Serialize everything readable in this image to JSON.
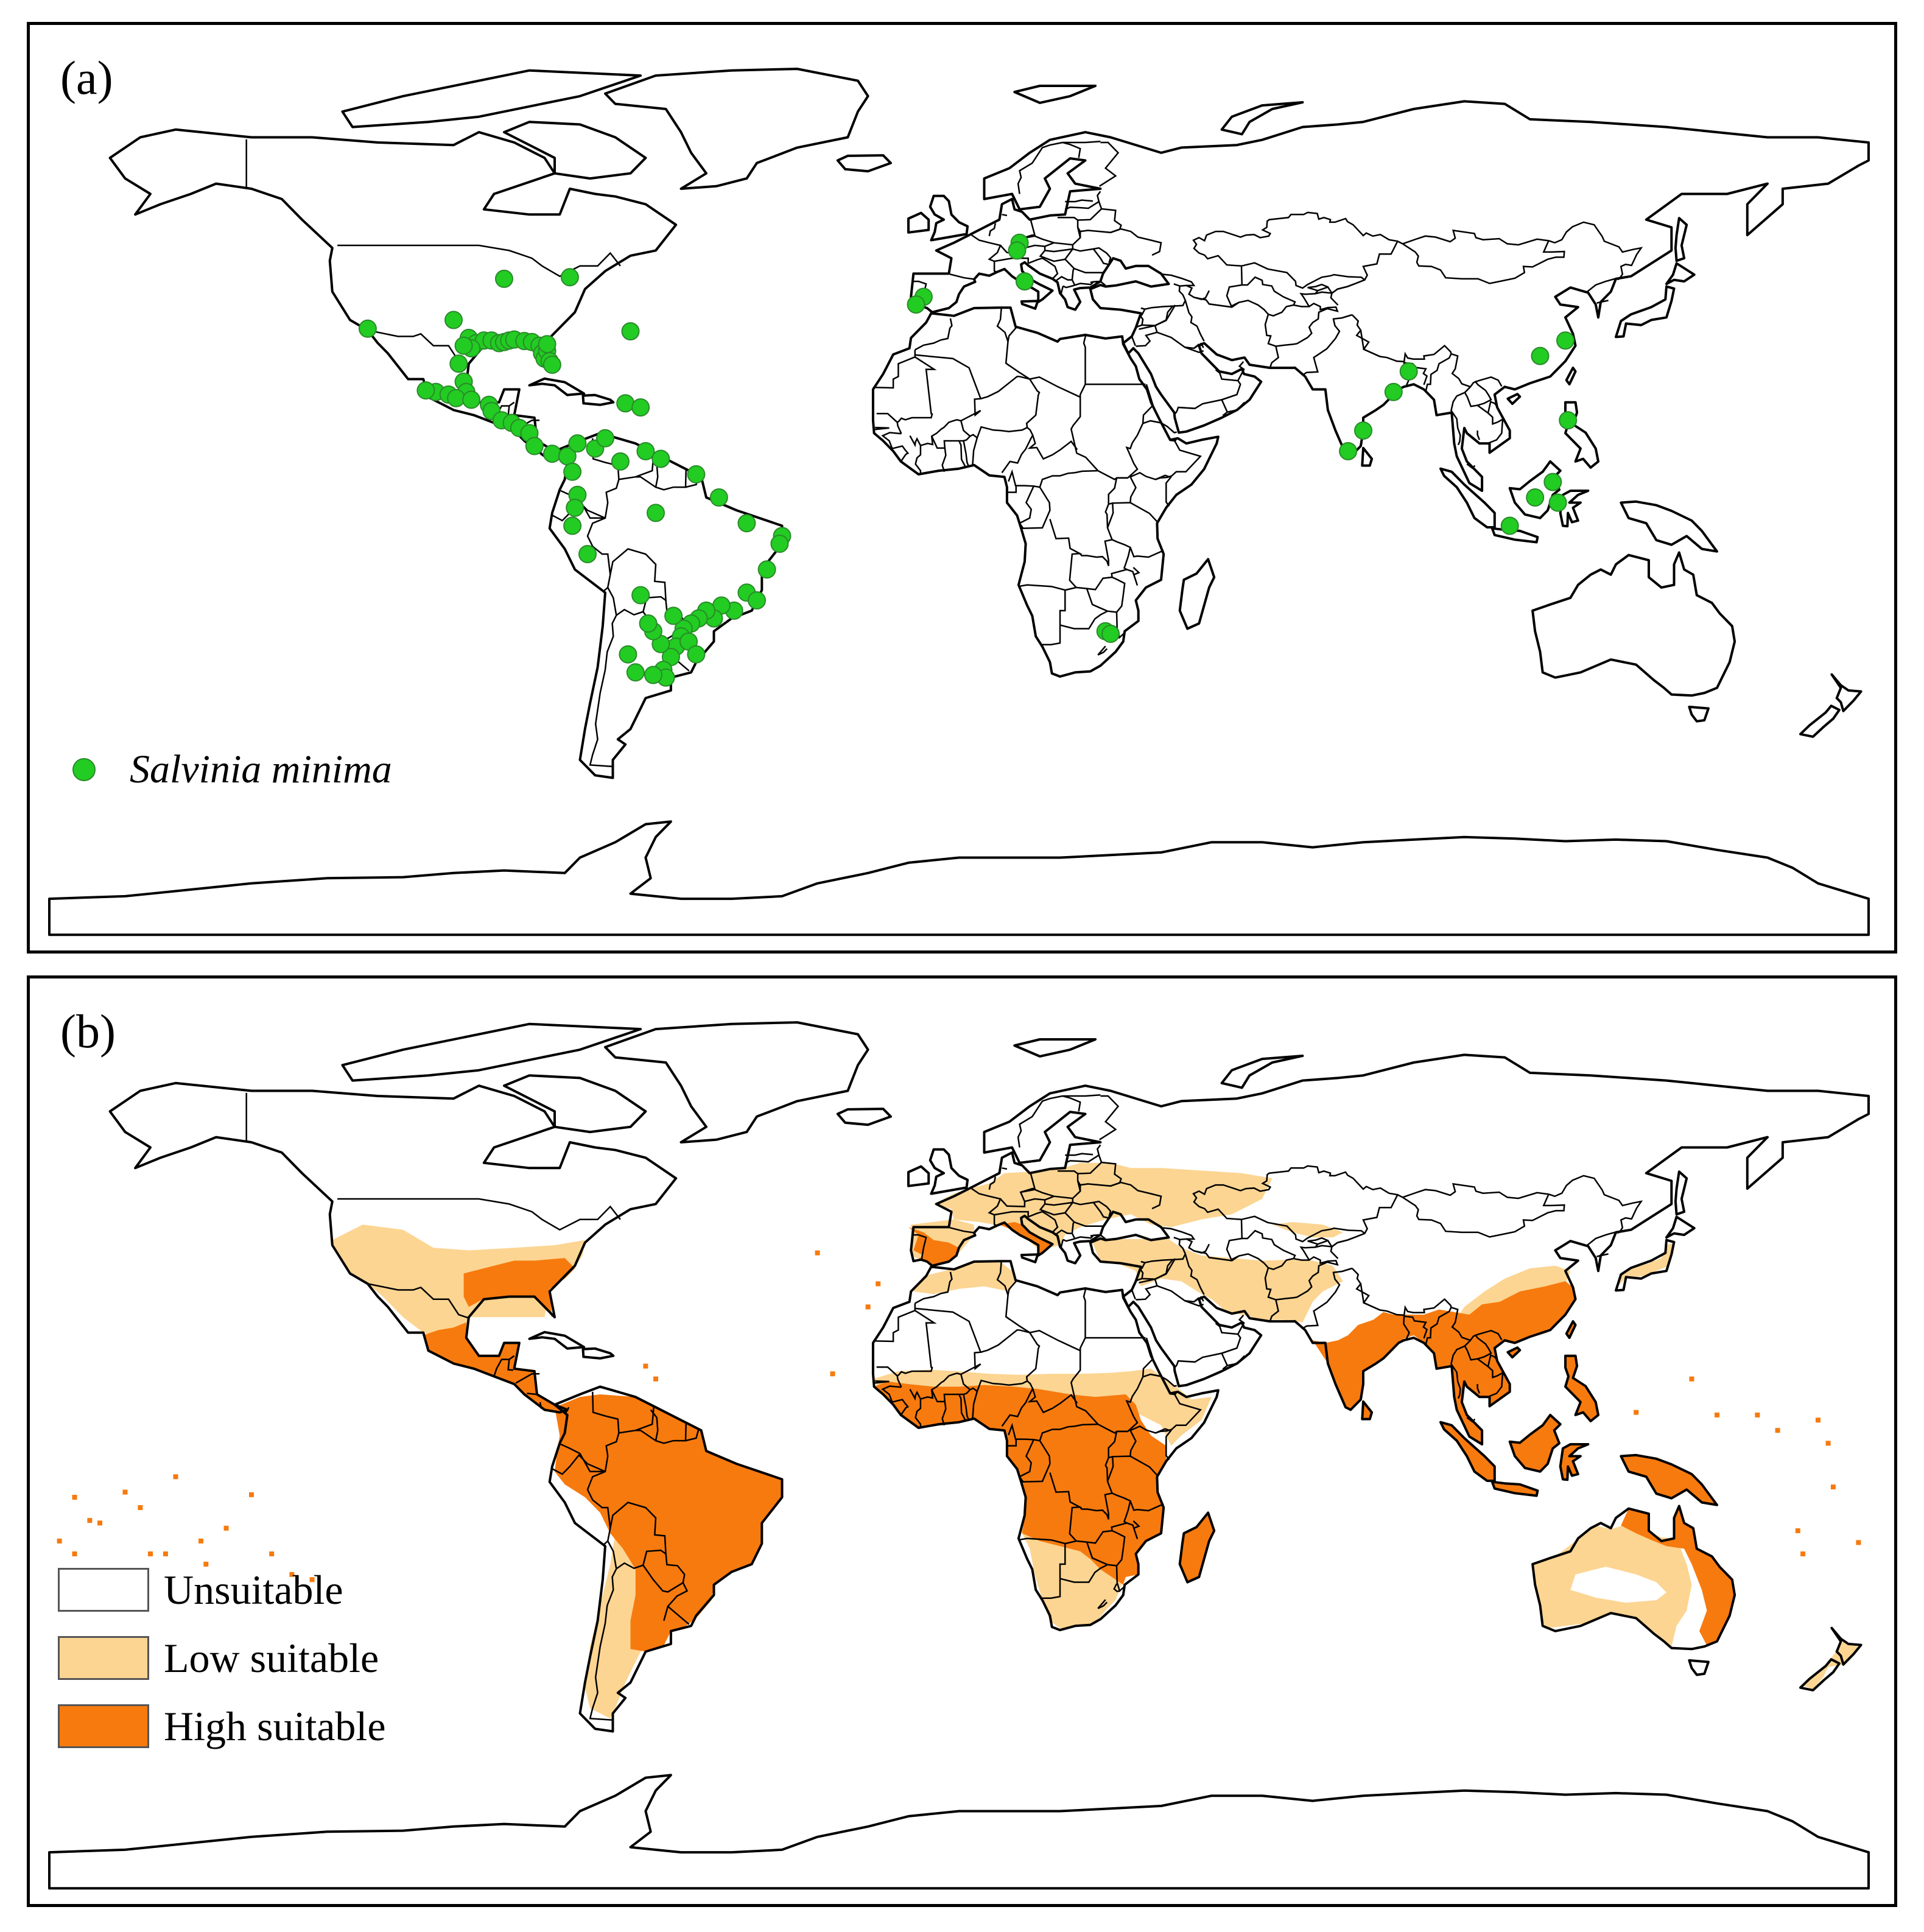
{
  "panel_a": {
    "label": "(a)",
    "legend": {
      "species": "Salvinia minima",
      "marker_color": "#22cc22"
    },
    "occurrences": [
      [
        -117.0,
        32.8
      ],
      [
        -90.0,
        42.5
      ],
      [
        -77.0,
        42.8
      ],
      [
        -65.0,
        32.3
      ],
      [
        -100.0,
        34.5
      ],
      [
        -97.0,
        31.0
      ],
      [
        -95.5,
        30.0
      ],
      [
        -94.0,
        30.5
      ],
      [
        -92.5,
        30.5
      ],
      [
        -91.0,
        30.0
      ],
      [
        -90.0,
        30.2
      ],
      [
        -89.0,
        30.5
      ],
      [
        -88.0,
        30.7
      ],
      [
        -86.0,
        30.4
      ],
      [
        -84.5,
        30.2
      ],
      [
        -83.0,
        29.5
      ],
      [
        -82.5,
        28.0
      ],
      [
        -82.0,
        27.0
      ],
      [
        -81.5,
        28.5
      ],
      [
        -81.0,
        26.5
      ],
      [
        -80.5,
        25.8
      ],
      [
        -81.5,
        29.8
      ],
      [
        -96.5,
        29.0
      ],
      [
        -98.0,
        29.5
      ],
      [
        -99.0,
        26.0
      ],
      [
        -98.0,
        22.5
      ],
      [
        -97.5,
        20.5
      ],
      [
        -103.5,
        20.5
      ],
      [
        -105.5,
        20.8
      ],
      [
        -101.0,
        20.0
      ],
      [
        -99.5,
        19.3
      ],
      [
        -96.5,
        19.0
      ],
      [
        -93.0,
        18.0
      ],
      [
        -92.5,
        16.8
      ],
      [
        -90.5,
        15.0
      ],
      [
        -88.5,
        14.5
      ],
      [
        -87.0,
        13.5
      ],
      [
        -85.0,
        12.5
      ],
      [
        -84.0,
        10.0
      ],
      [
        -80.5,
        8.5
      ],
      [
        -77.5,
        8.0
      ],
      [
        -75.5,
        10.5
      ],
      [
        -72.0,
        9.5
      ],
      [
        -70.0,
        11.5
      ],
      [
        -66.0,
        18.3
      ],
      [
        -63.0,
        17.5
      ],
      [
        -76.5,
        5.0
      ],
      [
        -75.5,
        0.5
      ],
      [
        -76.0,
        -2.0
      ],
      [
        -76.5,
        -5.5
      ],
      [
        -73.5,
        -11.0
      ],
      [
        -67.0,
        7.0
      ],
      [
        -62.0,
        9.0
      ],
      [
        -59.0,
        7.5
      ],
      [
        -52.0,
        4.5
      ],
      [
        -47.5,
        0.0
      ],
      [
        -60.0,
        -3.0
      ],
      [
        -42.0,
        -5.0
      ],
      [
        -35.0,
        -7.5
      ],
      [
        -35.5,
        -9.0
      ],
      [
        -38.0,
        -14.0
      ],
      [
        -42.0,
        -18.5
      ],
      [
        -40.0,
        -20.0
      ],
      [
        -44.5,
        -22.0
      ],
      [
        -47.0,
        -21.0
      ],
      [
        -48.5,
        -23.5
      ],
      [
        -50.0,
        -22.0
      ],
      [
        -51.5,
        -23.5
      ],
      [
        -53.0,
        -24.5
      ],
      [
        -54.5,
        -25.5
      ],
      [
        -55.0,
        -27.0
      ],
      [
        -56.0,
        -29.0
      ],
      [
        -57.0,
        -31.0
      ],
      [
        -58.5,
        -33.5
      ],
      [
        -58.0,
        -35.0
      ],
      [
        -60.5,
        -34.5
      ],
      [
        -64.0,
        -34.0
      ],
      [
        -59.0,
        -28.5
      ],
      [
        -60.5,
        -26.0
      ],
      [
        -61.5,
        -24.5
      ],
      [
        -63.0,
        -19.0
      ],
      [
        -56.5,
        -23.0
      ],
      [
        -53.5,
        -28.0
      ],
      [
        -52.0,
        -30.5
      ],
      [
        -65.5,
        -30.5
      ],
      [
        -7.0,
        39.0
      ],
      [
        -8.5,
        37.5
      ],
      [
        12.0,
        49.5
      ],
      [
        11.5,
        48.0
      ],
      [
        13.0,
        42.0
      ],
      [
        80.0,
        13.0
      ],
      [
        77.0,
        9.0
      ],
      [
        86.0,
        20.5
      ],
      [
        89.0,
        24.5
      ],
      [
        115.0,
        27.5
      ],
      [
        120.0,
        30.5
      ],
      [
        120.5,
        15.0
      ],
      [
        117.5,
        3.0
      ],
      [
        118.5,
        -1.0
      ],
      [
        114.0,
        0.0
      ],
      [
        109.0,
        -5.5
      ],
      [
        29.0,
        -26.0
      ],
      [
        30.0,
        -26.5
      ]
    ]
  },
  "panel_b": {
    "label": "(b)",
    "legend": [
      {
        "label": "Unsuitable",
        "color": "#ffffff"
      },
      {
        "label": "Low suitable",
        "color": "#fcd592"
      },
      {
        "label": "High suitable",
        "color": "#f77a0e"
      }
    ]
  }
}
